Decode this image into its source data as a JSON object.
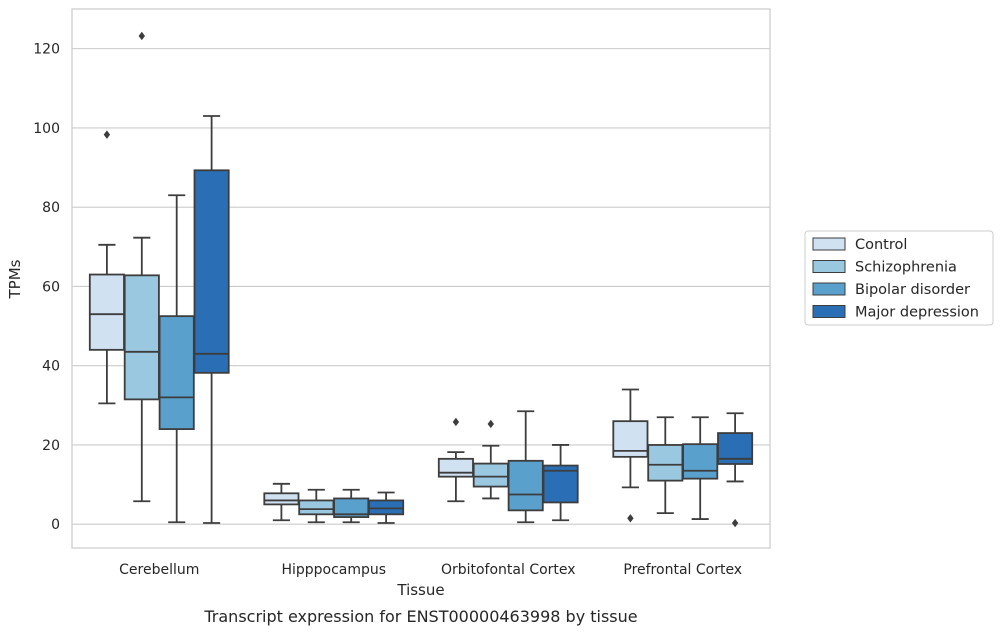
{
  "chart_data": {
    "type": "box",
    "title": "",
    "caption": "Transcript expression for ENST00000463998 by tissue",
    "xlabel": "Tissue",
    "ylabel": "TPMs",
    "ylim": [
      -6,
      130
    ],
    "yticks": [
      0,
      20,
      40,
      60,
      80,
      100,
      120
    ],
    "grid": true,
    "legend_position": "right",
    "categories": [
      "Cerebellum",
      "Hipppocampus",
      "Orbitofontal Cortex",
      "Prefrontal Cortex"
    ],
    "series": [
      {
        "name": "Control",
        "color": "#d0e1f2",
        "boxes": [
          {
            "whislo": 30.5,
            "q1": 44,
            "med": 53,
            "q3": 63,
            "whishi": 70.5,
            "fliers": [
              98.3
            ]
          },
          {
            "whislo": 1,
            "q1": 5,
            "med": 6,
            "q3": 7.8,
            "whishi": 10.2,
            "fliers": []
          },
          {
            "whislo": 5.8,
            "q1": 12,
            "med": 13,
            "q3": 16.5,
            "whishi": 18.2,
            "fliers": [
              25.8
            ]
          },
          {
            "whislo": 9.3,
            "q1": 17,
            "med": 18.5,
            "q3": 26,
            "whishi": 34,
            "fliers": [
              1.5
            ]
          }
        ]
      },
      {
        "name": "Schizophrenia",
        "color": "#9ac8e0",
        "boxes": [
          {
            "whislo": 5.8,
            "q1": 31.5,
            "med": 43.5,
            "q3": 62.8,
            "whishi": 72.3,
            "fliers": [
              123.2
            ]
          },
          {
            "whislo": 0.5,
            "q1": 2.5,
            "med": 3.8,
            "q3": 6,
            "whishi": 8.7,
            "fliers": []
          },
          {
            "whislo": 6.5,
            "q1": 9.5,
            "med": 12,
            "q3": 15.3,
            "whishi": 19.8,
            "fliers": [
              25.3
            ]
          },
          {
            "whislo": 2.8,
            "q1": 11,
            "med": 15,
            "q3": 20,
            "whishi": 27,
            "fliers": []
          }
        ]
      },
      {
        "name": "Bipolar disorder",
        "color": "#5aa0cd",
        "boxes": [
          {
            "whislo": 0.5,
            "q1": 24,
            "med": 32,
            "q3": 52.5,
            "whishi": 83,
            "fliers": []
          },
          {
            "whislo": 0.5,
            "q1": 1.8,
            "med": 2.5,
            "q3": 6.5,
            "whishi": 8.7,
            "fliers": []
          },
          {
            "whislo": 0.5,
            "q1": 3.5,
            "med": 7.5,
            "q3": 16,
            "whishi": 28.5,
            "fliers": []
          },
          {
            "whislo": 1.3,
            "q1": 11.5,
            "med": 13.5,
            "q3": 20.2,
            "whishi": 27,
            "fliers": []
          }
        ]
      },
      {
        "name": "Major depression",
        "color": "#2a6fb5",
        "boxes": [
          {
            "whislo": 0.3,
            "q1": 38.2,
            "med": 43,
            "q3": 89.3,
            "whishi": 103,
            "fliers": []
          },
          {
            "whislo": 0.3,
            "q1": 2.5,
            "med": 4,
            "q3": 6,
            "whishi": 8,
            "fliers": []
          },
          {
            "whislo": 1,
            "q1": 5.5,
            "med": 13.5,
            "q3": 14.8,
            "whishi": 20,
            "fliers": []
          },
          {
            "whislo": 10.8,
            "q1": 15.2,
            "med": 16.5,
            "q3": 23,
            "whishi": 28,
            "fliers": [
              0.3
            ]
          }
        ]
      }
    ]
  }
}
